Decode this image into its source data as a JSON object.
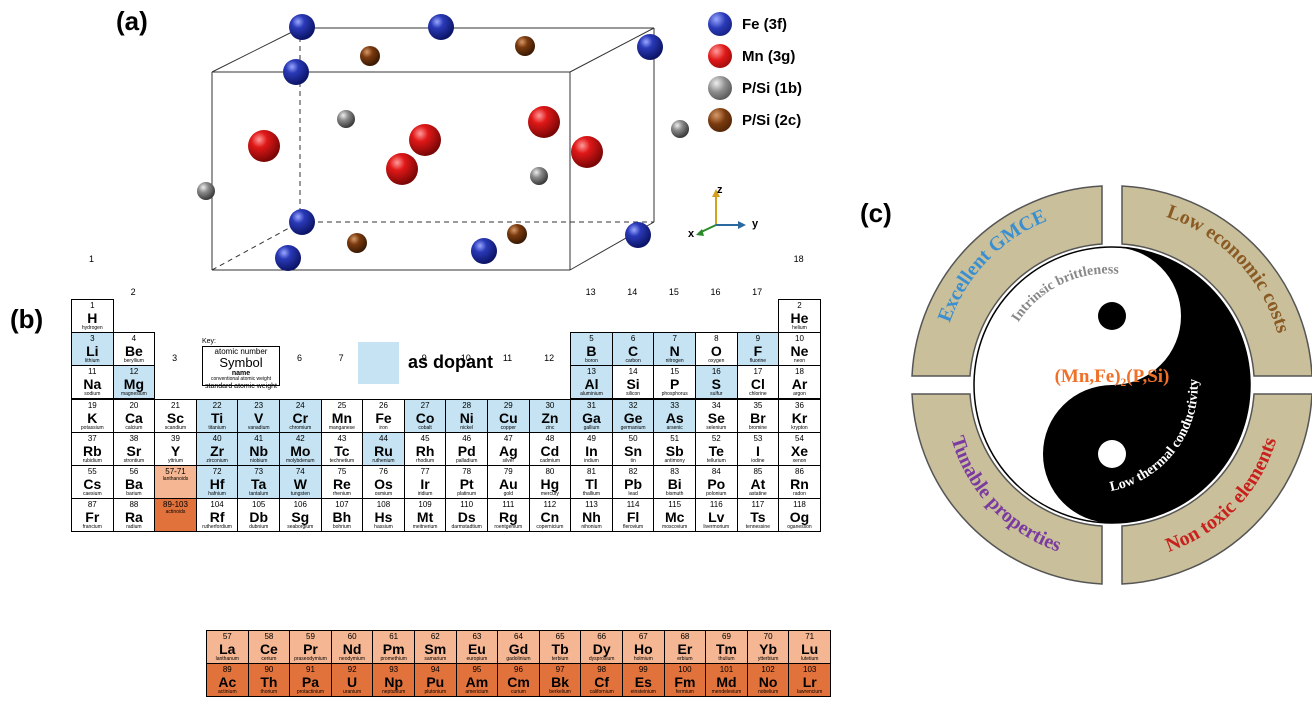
{
  "labels": {
    "a": "(a)",
    "b": "(b)",
    "c": "(c)"
  },
  "legend": [
    {
      "name": "Fe (3f)",
      "color": "#1f2f9e"
    },
    {
      "name": "Mn (3g)",
      "color": "#d01010"
    },
    {
      "name": "P/Si (1b)",
      "color": "#8a8a8a"
    },
    {
      "name": "P/Si (2c)",
      "color": "#7a3a0e"
    }
  ],
  "axes": {
    "z": "z",
    "x": "x",
    "y": "y"
  },
  "key": {
    "label": "Key:",
    "atomic_number": "atomic number",
    "symbol": "Symbol",
    "name": "name",
    "conventional": "conventional atomic weight",
    "standard": "standard atomic weight"
  },
  "dopant_label": "as dopant",
  "groups": [
    "1",
    "2",
    "3",
    "4",
    "5",
    "6",
    "7",
    "8",
    "9",
    "10",
    "11",
    "12",
    "13",
    "14",
    "15",
    "16",
    "17",
    "18"
  ],
  "elements": [
    {
      "n": "1",
      "s": "H",
      "nm": "hydrogen",
      "w": "1.008 [1.0078, 1.0082]",
      "r": 0,
      "c": 0,
      "t": "dop0"
    },
    {
      "n": "2",
      "s": "He",
      "nm": "helium",
      "w": "4.0026",
      "r": 0,
      "c": 17,
      "t": ""
    },
    {
      "n": "3",
      "s": "Li",
      "nm": "lithium",
      "w": "6.94 [6.938, 6.997]",
      "r": 1,
      "c": 0,
      "t": "dop"
    },
    {
      "n": "4",
      "s": "Be",
      "nm": "beryllium",
      "w": "9.0122",
      "r": 1,
      "c": 1,
      "t": ""
    },
    {
      "n": "5",
      "s": "B",
      "nm": "boron",
      "w": "10.81 [10.806, 10.821]",
      "r": 1,
      "c": 12,
      "t": "dop"
    },
    {
      "n": "6",
      "s": "C",
      "nm": "carbon",
      "w": "12.011 [12.009, 12.012]",
      "r": 1,
      "c": 13,
      "t": "dop"
    },
    {
      "n": "7",
      "s": "N",
      "nm": "nitrogen",
      "w": "14.007 [14.006, 14.008]",
      "r": 1,
      "c": 14,
      "t": "dop"
    },
    {
      "n": "8",
      "s": "O",
      "nm": "oxygen",
      "w": "15.999 [15.999, 16.000]",
      "r": 1,
      "c": 15,
      "t": ""
    },
    {
      "n": "9",
      "s": "F",
      "nm": "fluorine",
      "w": "18.998",
      "r": 1,
      "c": 16,
      "t": "dop"
    },
    {
      "n": "10",
      "s": "Ne",
      "nm": "neon",
      "w": "20.180",
      "r": 1,
      "c": 17,
      "t": ""
    },
    {
      "n": "11",
      "s": "Na",
      "nm": "sodium",
      "w": "22.990",
      "r": 2,
      "c": 0,
      "t": ""
    },
    {
      "n": "12",
      "s": "Mg",
      "nm": "magnesium",
      "w": "24.305 [24.304, 24.307]",
      "r": 2,
      "c": 1,
      "t": "dop"
    },
    {
      "n": "13",
      "s": "Al",
      "nm": "aluminium",
      "w": "26.982",
      "r": 2,
      "c": 12,
      "t": "dop"
    },
    {
      "n": "14",
      "s": "Si",
      "nm": "silicon",
      "w": "28.085 [28.084, 28.086]",
      "r": 2,
      "c": 13,
      "t": ""
    },
    {
      "n": "15",
      "s": "P",
      "nm": "phosphorus",
      "w": "30.974",
      "r": 2,
      "c": 14,
      "t": ""
    },
    {
      "n": "16",
      "s": "S",
      "nm": "sulfur",
      "w": "32.06 [32.059, 32.076]",
      "r": 2,
      "c": 15,
      "t": "dop"
    },
    {
      "n": "17",
      "s": "Cl",
      "nm": "chlorine",
      "w": "35.45 [35.446, 35.457]",
      "r": 2,
      "c": 16,
      "t": ""
    },
    {
      "n": "18",
      "s": "Ar",
      "nm": "argon",
      "w": "39.948",
      "r": 2,
      "c": 17,
      "t": ""
    },
    {
      "n": "19",
      "s": "K",
      "nm": "potassium",
      "w": "39.098",
      "r": 3,
      "c": 0,
      "t": ""
    },
    {
      "n": "20",
      "s": "Ca",
      "nm": "calcium",
      "w": "40.078(4)",
      "r": 3,
      "c": 1,
      "t": ""
    },
    {
      "n": "21",
      "s": "Sc",
      "nm": "scandium",
      "w": "44.956",
      "r": 3,
      "c": 2,
      "t": ""
    },
    {
      "n": "22",
      "s": "Ti",
      "nm": "titanium",
      "w": "47.867",
      "r": 3,
      "c": 3,
      "t": "dop"
    },
    {
      "n": "23",
      "s": "V",
      "nm": "vanadium",
      "w": "50.942",
      "r": 3,
      "c": 4,
      "t": "dop"
    },
    {
      "n": "24",
      "s": "Cr",
      "nm": "chromium",
      "w": "51.996",
      "r": 3,
      "c": 5,
      "t": "dop"
    },
    {
      "n": "25",
      "s": "Mn",
      "nm": "manganese",
      "w": "54.938",
      "r": 3,
      "c": 6,
      "t": ""
    },
    {
      "n": "26",
      "s": "Fe",
      "nm": "iron",
      "w": "55.845(2)",
      "r": 3,
      "c": 7,
      "t": ""
    },
    {
      "n": "27",
      "s": "Co",
      "nm": "cobalt",
      "w": "58.933",
      "r": 3,
      "c": 8,
      "t": "dop"
    },
    {
      "n": "28",
      "s": "Ni",
      "nm": "nickel",
      "w": "58.693",
      "r": 3,
      "c": 9,
      "t": "dop"
    },
    {
      "n": "29",
      "s": "Cu",
      "nm": "copper",
      "w": "63.546(3)",
      "r": 3,
      "c": 10,
      "t": "dop"
    },
    {
      "n": "30",
      "s": "Zn",
      "nm": "zinc",
      "w": "65.38(2)",
      "r": 3,
      "c": 11,
      "t": "dop"
    },
    {
      "n": "31",
      "s": "Ga",
      "nm": "gallium",
      "w": "69.723",
      "r": 3,
      "c": 12,
      "t": "dop"
    },
    {
      "n": "32",
      "s": "Ge",
      "nm": "germanium",
      "w": "72.630(8)",
      "r": 3,
      "c": 13,
      "t": "dop"
    },
    {
      "n": "33",
      "s": "As",
      "nm": "arsenic",
      "w": "74.922",
      "r": 3,
      "c": 14,
      "t": "dop"
    },
    {
      "n": "34",
      "s": "Se",
      "nm": "selenium",
      "w": "78.971(8)",
      "r": 3,
      "c": 15,
      "t": ""
    },
    {
      "n": "35",
      "s": "Br",
      "nm": "bromine",
      "w": "79.904 [79.901, 79.907]",
      "r": 3,
      "c": 16,
      "t": ""
    },
    {
      "n": "36",
      "s": "Kr",
      "nm": "krypton",
      "w": "83.798(2)",
      "r": 3,
      "c": 17,
      "t": ""
    },
    {
      "n": "37",
      "s": "Rb",
      "nm": "rubidium",
      "w": "85.468",
      "r": 4,
      "c": 0,
      "t": ""
    },
    {
      "n": "38",
      "s": "Sr",
      "nm": "strontium",
      "w": "87.62",
      "r": 4,
      "c": 1,
      "t": ""
    },
    {
      "n": "39",
      "s": "Y",
      "nm": "yttrium",
      "w": "88.906",
      "r": 4,
      "c": 2,
      "t": ""
    },
    {
      "n": "40",
      "s": "Zr",
      "nm": "zirconium",
      "w": "91.224(2)",
      "r": 4,
      "c": 3,
      "t": "dop"
    },
    {
      "n": "41",
      "s": "Nb",
      "nm": "niobium",
      "w": "92.906",
      "r": 4,
      "c": 4,
      "t": "dop"
    },
    {
      "n": "42",
      "s": "Mo",
      "nm": "molybdenum",
      "w": "95.95",
      "r": 4,
      "c": 5,
      "t": "dop"
    },
    {
      "n": "43",
      "s": "Tc",
      "nm": "technetium",
      "w": "",
      "r": 4,
      "c": 6,
      "t": ""
    },
    {
      "n": "44",
      "s": "Ru",
      "nm": "ruthenium",
      "w": "101.07(2)",
      "r": 4,
      "c": 7,
      "t": "dop"
    },
    {
      "n": "45",
      "s": "Rh",
      "nm": "rhodium",
      "w": "102.91",
      "r": 4,
      "c": 8,
      "t": ""
    },
    {
      "n": "46",
      "s": "Pd",
      "nm": "palladium",
      "w": "106.42",
      "r": 4,
      "c": 9,
      "t": ""
    },
    {
      "n": "47",
      "s": "Ag",
      "nm": "silver",
      "w": "107.87",
      "r": 4,
      "c": 10,
      "t": ""
    },
    {
      "n": "48",
      "s": "Cd",
      "nm": "cadmium",
      "w": "112.41",
      "r": 4,
      "c": 11,
      "t": ""
    },
    {
      "n": "49",
      "s": "In",
      "nm": "indium",
      "w": "114.82",
      "r": 4,
      "c": 12,
      "t": ""
    },
    {
      "n": "50",
      "s": "Sn",
      "nm": "tin",
      "w": "118.71",
      "r": 4,
      "c": 13,
      "t": ""
    },
    {
      "n": "51",
      "s": "Sb",
      "nm": "antimony",
      "w": "121.76",
      "r": 4,
      "c": 14,
      "t": ""
    },
    {
      "n": "52",
      "s": "Te",
      "nm": "tellurium",
      "w": "127.60(3)",
      "r": 4,
      "c": 15,
      "t": ""
    },
    {
      "n": "53",
      "s": "I",
      "nm": "iodine",
      "w": "126.90",
      "r": 4,
      "c": 16,
      "t": ""
    },
    {
      "n": "54",
      "s": "Xe",
      "nm": "xenon",
      "w": "131.29",
      "r": 4,
      "c": 17,
      "t": ""
    },
    {
      "n": "55",
      "s": "Cs",
      "nm": "caesium",
      "w": "132.91",
      "r": 5,
      "c": 0,
      "t": ""
    },
    {
      "n": "56",
      "s": "Ba",
      "nm": "barium",
      "w": "137.33",
      "r": 5,
      "c": 1,
      "t": ""
    },
    {
      "n": "57-71",
      "s": "",
      "nm": "lanthanoids",
      "w": "",
      "r": 5,
      "c": 2,
      "t": "lan"
    },
    {
      "n": "72",
      "s": "Hf",
      "nm": "hafnium",
      "w": "178.49(2)",
      "r": 5,
      "c": 3,
      "t": "dop"
    },
    {
      "n": "73",
      "s": "Ta",
      "nm": "tantalum",
      "w": "180.95",
      "r": 5,
      "c": 4,
      "t": "dop"
    },
    {
      "n": "74",
      "s": "W",
      "nm": "tungsten",
      "w": "183.84",
      "r": 5,
      "c": 5,
      "t": "dop"
    },
    {
      "n": "75",
      "s": "Re",
      "nm": "rhenium",
      "w": "186.21",
      "r": 5,
      "c": 6,
      "t": ""
    },
    {
      "n": "76",
      "s": "Os",
      "nm": "osmium",
      "w": "190.23(3)",
      "r": 5,
      "c": 7,
      "t": ""
    },
    {
      "n": "77",
      "s": "Ir",
      "nm": "iridium",
      "w": "192.22",
      "r": 5,
      "c": 8,
      "t": ""
    },
    {
      "n": "78",
      "s": "Pt",
      "nm": "platinum",
      "w": "195.08",
      "r": 5,
      "c": 9,
      "t": ""
    },
    {
      "n": "79",
      "s": "Au",
      "nm": "gold",
      "w": "196.97",
      "r": 5,
      "c": 10,
      "t": ""
    },
    {
      "n": "80",
      "s": "Hg",
      "nm": "mercury",
      "w": "200.59",
      "r": 5,
      "c": 11,
      "t": ""
    },
    {
      "n": "81",
      "s": "Tl",
      "nm": "thallium",
      "w": "204.38 [204.38, 204.39]",
      "r": 5,
      "c": 12,
      "t": ""
    },
    {
      "n": "82",
      "s": "Pb",
      "nm": "lead",
      "w": "207.2",
      "r": 5,
      "c": 13,
      "t": ""
    },
    {
      "n": "83",
      "s": "Bi",
      "nm": "bismuth",
      "w": "208.98",
      "r": 5,
      "c": 14,
      "t": ""
    },
    {
      "n": "84",
      "s": "Po",
      "nm": "polonium",
      "w": "",
      "r": 5,
      "c": 15,
      "t": ""
    },
    {
      "n": "85",
      "s": "At",
      "nm": "astatine",
      "w": "",
      "r": 5,
      "c": 16,
      "t": ""
    },
    {
      "n": "86",
      "s": "Rn",
      "nm": "radon",
      "w": "",
      "r": 5,
      "c": 17,
      "t": ""
    },
    {
      "n": "87",
      "s": "Fr",
      "nm": "francium",
      "w": "",
      "r": 6,
      "c": 0,
      "t": ""
    },
    {
      "n": "88",
      "s": "Ra",
      "nm": "radium",
      "w": "",
      "r": 6,
      "c": 1,
      "t": ""
    },
    {
      "n": "89-103",
      "s": "",
      "nm": "actinoids",
      "w": "",
      "r": 6,
      "c": 2,
      "t": "act"
    },
    {
      "n": "104",
      "s": "Rf",
      "nm": "rutherfordium",
      "w": "",
      "r": 6,
      "c": 3,
      "t": ""
    },
    {
      "n": "105",
      "s": "Db",
      "nm": "dubnium",
      "w": "",
      "r": 6,
      "c": 4,
      "t": ""
    },
    {
      "n": "106",
      "s": "Sg",
      "nm": "seaborgium",
      "w": "",
      "r": 6,
      "c": 5,
      "t": ""
    },
    {
      "n": "107",
      "s": "Bh",
      "nm": "bohrium",
      "w": "",
      "r": 6,
      "c": 6,
      "t": ""
    },
    {
      "n": "108",
      "s": "Hs",
      "nm": "hassium",
      "w": "",
      "r": 6,
      "c": 7,
      "t": ""
    },
    {
      "n": "109",
      "s": "Mt",
      "nm": "meitnerium",
      "w": "",
      "r": 6,
      "c": 8,
      "t": ""
    },
    {
      "n": "110",
      "s": "Ds",
      "nm": "darmstadtium",
      "w": "",
      "r": 6,
      "c": 9,
      "t": ""
    },
    {
      "n": "111",
      "s": "Rg",
      "nm": "roentgenium",
      "w": "",
      "r": 6,
      "c": 10,
      "t": ""
    },
    {
      "n": "112",
      "s": "Cn",
      "nm": "copernicium",
      "w": "",
      "r": 6,
      "c": 11,
      "t": ""
    },
    {
      "n": "113",
      "s": "Nh",
      "nm": "nihonium",
      "w": "",
      "r": 6,
      "c": 12,
      "t": ""
    },
    {
      "n": "114",
      "s": "Fl",
      "nm": "flerovium",
      "w": "",
      "r": 6,
      "c": 13,
      "t": ""
    },
    {
      "n": "115",
      "s": "Mc",
      "nm": "moscovium",
      "w": "",
      "r": 6,
      "c": 14,
      "t": ""
    },
    {
      "n": "116",
      "s": "Lv",
      "nm": "livermorium",
      "w": "",
      "r": 6,
      "c": 15,
      "t": ""
    },
    {
      "n": "117",
      "s": "Ts",
      "nm": "tennessine",
      "w": "",
      "r": 6,
      "c": 16,
      "t": ""
    },
    {
      "n": "118",
      "s": "Og",
      "nm": "oganesson",
      "w": "",
      "r": 6,
      "c": 17,
      "t": ""
    }
  ],
  "lanthanoids": [
    {
      "n": "57",
      "s": "La",
      "nm": "lanthanum",
      "w": "138.91"
    },
    {
      "n": "58",
      "s": "Ce",
      "nm": "cerium",
      "w": "140.12"
    },
    {
      "n": "59",
      "s": "Pr",
      "nm": "praseodymium",
      "w": "140.91"
    },
    {
      "n": "60",
      "s": "Nd",
      "nm": "neodymium",
      "w": "144.24"
    },
    {
      "n": "61",
      "s": "Pm",
      "nm": "promethium",
      "w": ""
    },
    {
      "n": "62",
      "s": "Sm",
      "nm": "samarium",
      "w": "150.36(2)"
    },
    {
      "n": "63",
      "s": "Eu",
      "nm": "europium",
      "w": "151.96"
    },
    {
      "n": "64",
      "s": "Gd",
      "nm": "gadolinium",
      "w": "157.25(3)"
    },
    {
      "n": "65",
      "s": "Tb",
      "nm": "terbium",
      "w": "158.93"
    },
    {
      "n": "66",
      "s": "Dy",
      "nm": "dysprosium",
      "w": "162.50"
    },
    {
      "n": "67",
      "s": "Ho",
      "nm": "holmium",
      "w": "164.93"
    },
    {
      "n": "68",
      "s": "Er",
      "nm": "erbium",
      "w": "167.26"
    },
    {
      "n": "69",
      "s": "Tm",
      "nm": "thulium",
      "w": "168.93"
    },
    {
      "n": "70",
      "s": "Yb",
      "nm": "ytterbium",
      "w": "173.05"
    },
    {
      "n": "71",
      "s": "Lu",
      "nm": "lutetium",
      "w": "174.97"
    }
  ],
  "actinoids": [
    {
      "n": "89",
      "s": "Ac",
      "nm": "actinium",
      "w": ""
    },
    {
      "n": "90",
      "s": "Th",
      "nm": "thorium",
      "w": "232.04"
    },
    {
      "n": "91",
      "s": "Pa",
      "nm": "protactinium",
      "w": "231.04"
    },
    {
      "n": "92",
      "s": "U",
      "nm": "uranium",
      "w": "238.03"
    },
    {
      "n": "93",
      "s": "Np",
      "nm": "neptunium",
      "w": ""
    },
    {
      "n": "94",
      "s": "Pu",
      "nm": "plutonium",
      "w": ""
    },
    {
      "n": "95",
      "s": "Am",
      "nm": "americium",
      "w": ""
    },
    {
      "n": "96",
      "s": "Cm",
      "nm": "curium",
      "w": ""
    },
    {
      "n": "97",
      "s": "Bk",
      "nm": "berkelium",
      "w": ""
    },
    {
      "n": "98",
      "s": "Cf",
      "nm": "californium",
      "w": ""
    },
    {
      "n": "99",
      "s": "Es",
      "nm": "einsteinium",
      "w": ""
    },
    {
      "n": "100",
      "s": "Fm",
      "nm": "fermium",
      "w": ""
    },
    {
      "n": "101",
      "s": "Md",
      "nm": "mendelevium",
      "w": ""
    },
    {
      "n": "102",
      "s": "No",
      "nm": "nobelium",
      "w": ""
    },
    {
      "n": "103",
      "s": "Lr",
      "nm": "lawrencium",
      "w": ""
    }
  ],
  "yinyang": {
    "center": "(Mn,Fe)₂(P,Si)",
    "inner_top": "Intrinsic brittleness",
    "inner_bottom": "Low thermal conductivity",
    "outer": {
      "top_left": "Excellent GMCE",
      "top_right": "Low economic costs",
      "bottom_left": "Tunable properties",
      "bottom_right": "Non toxic elements"
    },
    "colors": {
      "sector": "#c9bf9a",
      "top_left": "#3a8fd0",
      "top_right": "#8a5a24",
      "bottom_left": "#7a3aa0",
      "bottom_right": "#c8201c",
      "center": "#f07028"
    }
  }
}
